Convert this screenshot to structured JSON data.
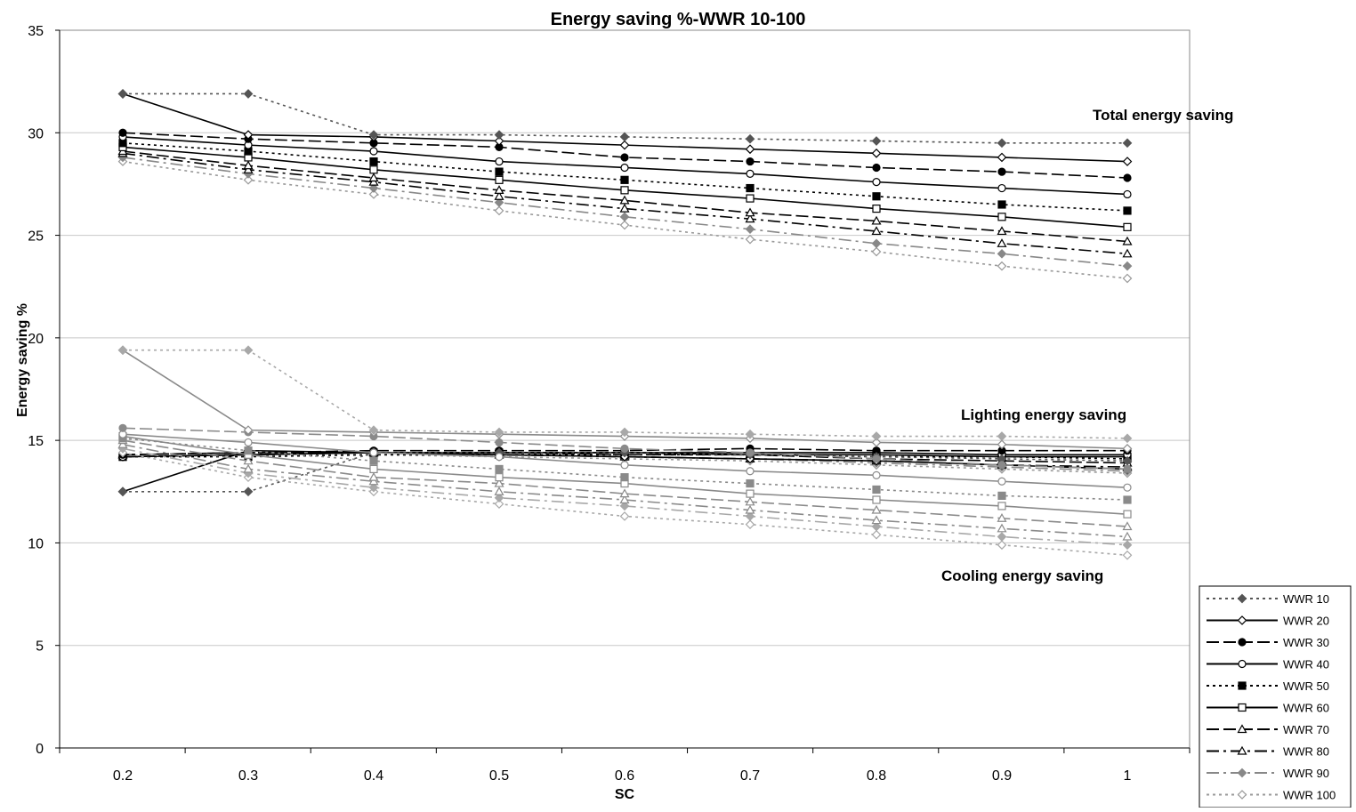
{
  "chart_data": {
    "type": "line",
    "title": "Energy saving %-WWR 10-100",
    "xlabel": "SC",
    "ylabel": "Energy saving %",
    "x": [
      0.2,
      0.3,
      0.4,
      0.5,
      0.6,
      0.7,
      0.8,
      0.9,
      1
    ],
    "x_tick_labels": [
      "0.2",
      "0.3",
      "0.4",
      "0.5",
      "0.6",
      "0.7",
      "0.8",
      "0.9",
      "1"
    ],
    "ylim": [
      0,
      35
    ],
    "y_ticks": [
      0,
      5,
      10,
      15,
      20,
      25,
      30,
      35
    ],
    "y_tick_labels": [
      "0",
      "5",
      "10",
      "15",
      "20",
      "25",
      "30",
      "35"
    ],
    "grid": "horizontal",
    "legend_position": "bottom-right",
    "annotations": {
      "total": "Total energy saving",
      "lighting": "Lighting energy saving",
      "cooling": "Cooling energy saving"
    },
    "series_styles": [
      {
        "name": "WWR 10",
        "color": "#555555",
        "dash": "3,4",
        "marker": "diamond-filled"
      },
      {
        "name": "WWR 20",
        "color": "#000000",
        "dash": "",
        "marker": "diamond-open"
      },
      {
        "name": "WWR 30",
        "color": "#000000",
        "dash": "14,5",
        "marker": "circle-filled"
      },
      {
        "name": "WWR 40",
        "color": "#000000",
        "dash": "",
        "marker": "circle-open"
      },
      {
        "name": "WWR 50",
        "color": "#000000",
        "dash": "3,4",
        "marker": "square-filled"
      },
      {
        "name": "WWR 60",
        "color": "#000000",
        "dash": "",
        "marker": "square-open"
      },
      {
        "name": "WWR 70",
        "color": "#000000",
        "dash": "14,5",
        "marker": "triangle-open"
      },
      {
        "name": "WWR 80",
        "color": "#000000",
        "dash": "14,5,3,5",
        "marker": "triangle-open"
      },
      {
        "name": "WWR 90",
        "color": "#888888",
        "dash": "14,5,3,5",
        "marker": "diamond-filled"
      },
      {
        "name": "WWR 100",
        "color": "#999999",
        "dash": "3,4",
        "marker": "diamond-open"
      }
    ],
    "groups": [
      {
        "group": "total",
        "series": [
          {
            "name": "WWR 10",
            "values": [
              31.9,
              31.9,
              29.9,
              29.9,
              29.8,
              29.7,
              29.6,
              29.5,
              29.5
            ]
          },
          {
            "name": "WWR 20",
            "values": [
              31.9,
              29.9,
              29.8,
              29.6,
              29.4,
              29.2,
              29.0,
              28.8,
              28.6
            ]
          },
          {
            "name": "WWR 30",
            "values": [
              30.0,
              29.7,
              29.5,
              29.3,
              28.8,
              28.6,
              28.3,
              28.1,
              27.8
            ]
          },
          {
            "name": "WWR 40",
            "values": [
              29.8,
              29.4,
              29.1,
              28.6,
              28.3,
              28.0,
              27.6,
              27.3,
              27.0
            ]
          },
          {
            "name": "WWR 50",
            "values": [
              29.5,
              29.1,
              28.6,
              28.1,
              27.7,
              27.3,
              26.9,
              26.5,
              26.2
            ]
          },
          {
            "name": "WWR 60",
            "values": [
              29.3,
              28.8,
              28.2,
              27.7,
              27.2,
              26.8,
              26.3,
              25.9,
              25.4
            ]
          },
          {
            "name": "WWR 70",
            "values": [
              29.1,
              28.4,
              27.8,
              27.2,
              26.7,
              26.1,
              25.7,
              25.2,
              24.7
            ]
          },
          {
            "name": "WWR 80",
            "values": [
              29.0,
              28.2,
              27.6,
              26.9,
              26.3,
              25.8,
              25.2,
              24.6,
              24.1
            ]
          },
          {
            "name": "WWR 90",
            "values": [
              28.8,
              28.0,
              27.3,
              26.6,
              25.9,
              25.3,
              24.6,
              24.1,
              23.5
            ]
          },
          {
            "name": "WWR 100",
            "values": [
              28.6,
              27.7,
              27.0,
              26.2,
              25.5,
              24.8,
              24.2,
              23.5,
              22.9
            ]
          }
        ]
      },
      {
        "group": "lighting",
        "series": [
          {
            "name": "WWR 10",
            "values": [
              12.5,
              12.5,
              14.4,
              14.4,
              14.4,
              14.3,
              14.2,
              14.1,
              14.0
            ]
          },
          {
            "name": "WWR 20",
            "values": [
              12.5,
              14.5,
              14.4,
              14.3,
              14.2,
              14.1,
              14.0,
              13.8,
              13.6
            ]
          },
          {
            "name": "WWR 30",
            "values": [
              14.3,
              14.4,
              14.5,
              14.5,
              14.5,
              14.6,
              14.5,
              14.5,
              14.5
            ]
          },
          {
            "name": "WWR 40",
            "values": [
              14.2,
              14.3,
              14.4,
              14.4,
              14.4,
              14.4,
              14.4,
              14.3,
              14.3
            ]
          },
          {
            "name": "WWR 50",
            "values": [
              14.2,
              14.2,
              14.3,
              14.3,
              14.3,
              14.3,
              14.2,
              14.2,
              14.1
            ]
          },
          {
            "name": "WWR 60",
            "values": [
              14.2,
              14.3,
              14.4,
              14.4,
              14.4,
              14.3,
              14.3,
              14.2,
              14.2
            ]
          },
          {
            "name": "WWR 70",
            "values": [
              14.3,
              14.4,
              14.4,
              14.4,
              14.3,
              14.3,
              14.1,
              14.0,
              13.9
            ]
          },
          {
            "name": "WWR 80",
            "values": [
              14.3,
              14.4,
              14.4,
              14.3,
              14.2,
              14.1,
              14.0,
              13.8,
              13.7
            ]
          },
          {
            "name": "WWR 90",
            "values": [
              14.2,
              14.3,
              14.4,
              14.3,
              14.2,
              14.1,
              13.9,
              13.7,
              13.5
            ]
          },
          {
            "name": "WWR 100",
            "values": [
              14.2,
              14.3,
              14.3,
              14.2,
              14.1,
              14.0,
              13.8,
              13.6,
              13.4
            ]
          }
        ]
      },
      {
        "group": "cooling",
        "series": [
          {
            "name": "WWR 10",
            "values": [
              19.4,
              19.4,
              15.5,
              15.4,
              15.4,
              15.3,
              15.2,
              15.2,
              15.1
            ]
          },
          {
            "name": "WWR 20",
            "values": [
              19.4,
              15.5,
              15.4,
              15.3,
              15.2,
              15.1,
              14.9,
              14.8,
              14.6
            ]
          },
          {
            "name": "WWR 30",
            "values": [
              15.6,
              15.4,
              15.2,
              14.9,
              14.6,
              14.4,
              14.1,
              13.8,
              13.6
            ]
          },
          {
            "name": "WWR 40",
            "values": [
              15.3,
              14.9,
              14.4,
              14.2,
              13.8,
              13.5,
              13.3,
              13.0,
              12.7
            ]
          },
          {
            "name": "WWR 50",
            "values": [
              15.1,
              14.5,
              14.0,
              13.6,
              13.2,
              12.9,
              12.6,
              12.3,
              12.1
            ]
          },
          {
            "name": "WWR 60",
            "values": [
              15.2,
              14.3,
              13.6,
              13.2,
              12.9,
              12.4,
              12.1,
              11.8,
              11.4
            ]
          },
          {
            "name": "WWR 70",
            "values": [
              15.0,
              14.0,
              13.2,
              12.9,
              12.4,
              12.0,
              11.6,
              11.2,
              10.8
            ]
          },
          {
            "name": "WWR 80",
            "values": [
              14.8,
              13.6,
              13.0,
              12.5,
              12.1,
              11.6,
              11.1,
              10.7,
              10.3
            ]
          },
          {
            "name": "WWR 90",
            "values": [
              14.6,
              13.4,
              12.7,
              12.2,
              11.8,
              11.3,
              10.8,
              10.3,
              9.9
            ]
          },
          {
            "name": "WWR 100",
            "values": [
              14.4,
              13.2,
              12.5,
              11.9,
              11.3,
              10.9,
              10.4,
              9.9,
              9.4
            ]
          }
        ]
      }
    ]
  }
}
